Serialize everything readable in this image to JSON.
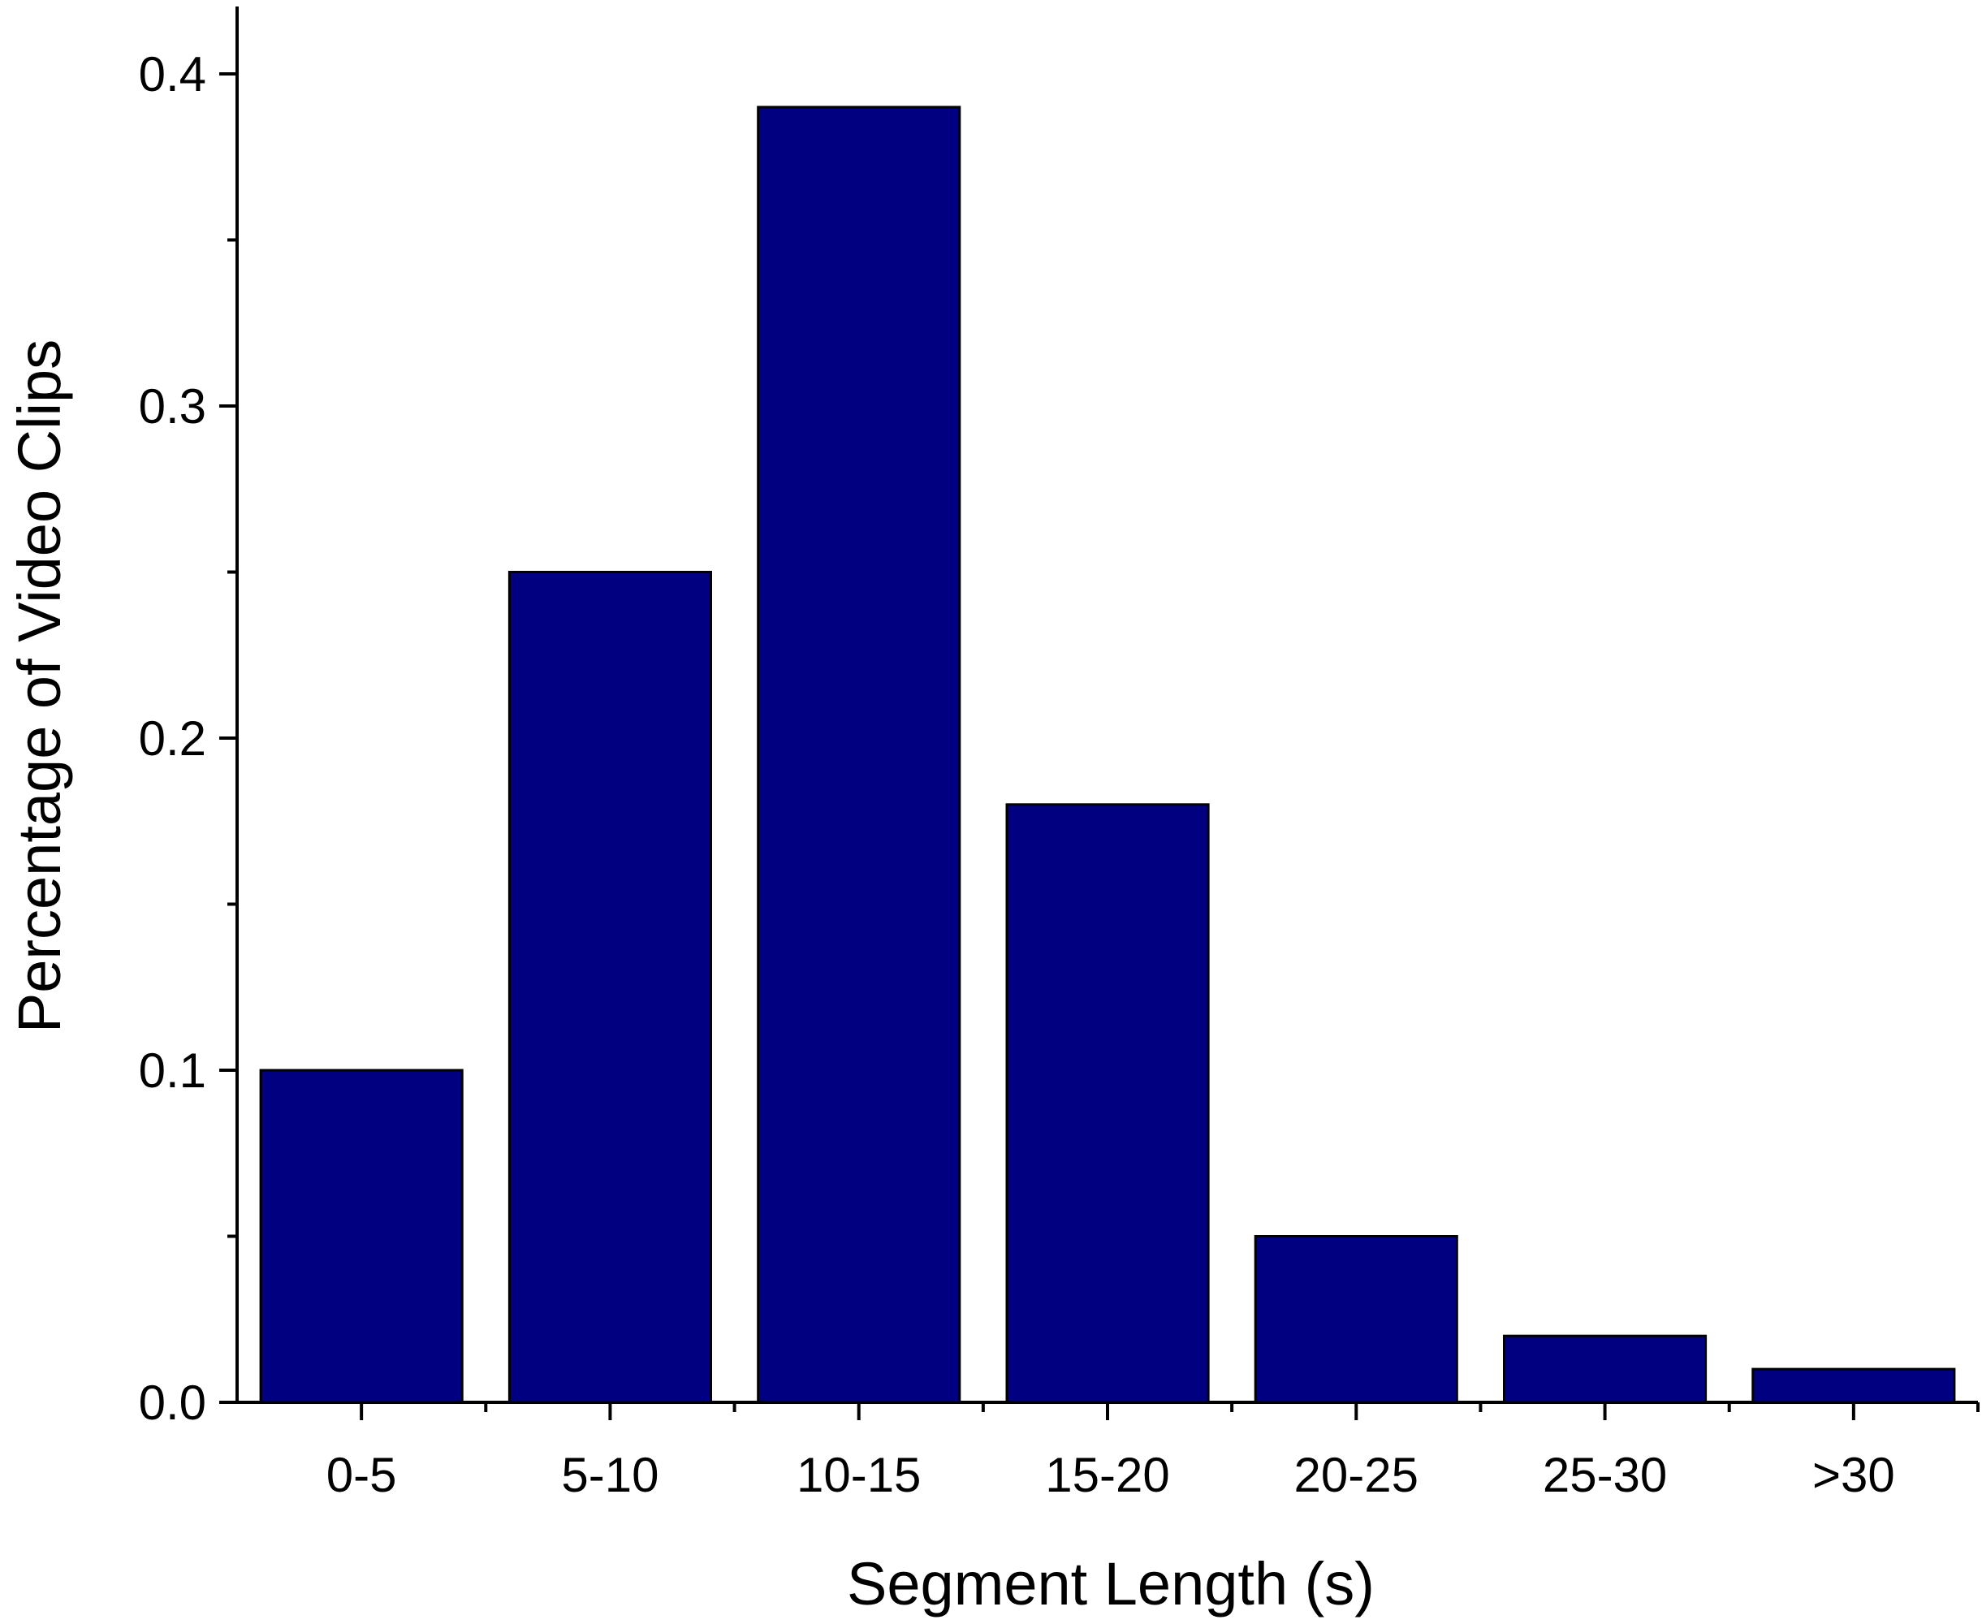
{
  "chart_data": {
    "type": "bar",
    "title": "",
    "xlabel": "Segment Length (s)",
    "ylabel": "Percentage of Video Clips",
    "categories": [
      "0-5",
      "5-10",
      "10-15",
      "15-20",
      "20-25",
      "25-30",
      ">30"
    ],
    "values": [
      0.1,
      0.25,
      0.39,
      0.18,
      0.05,
      0.02,
      0.01
    ],
    "ylim": [
      0,
      0.42
    ],
    "yticks": [
      "0.0",
      "0.1",
      "0.2",
      "0.3",
      "0.4"
    ],
    "grid": false,
    "legend": "none",
    "bar_color": "#000080",
    "bar_edge_color": "#000000"
  }
}
